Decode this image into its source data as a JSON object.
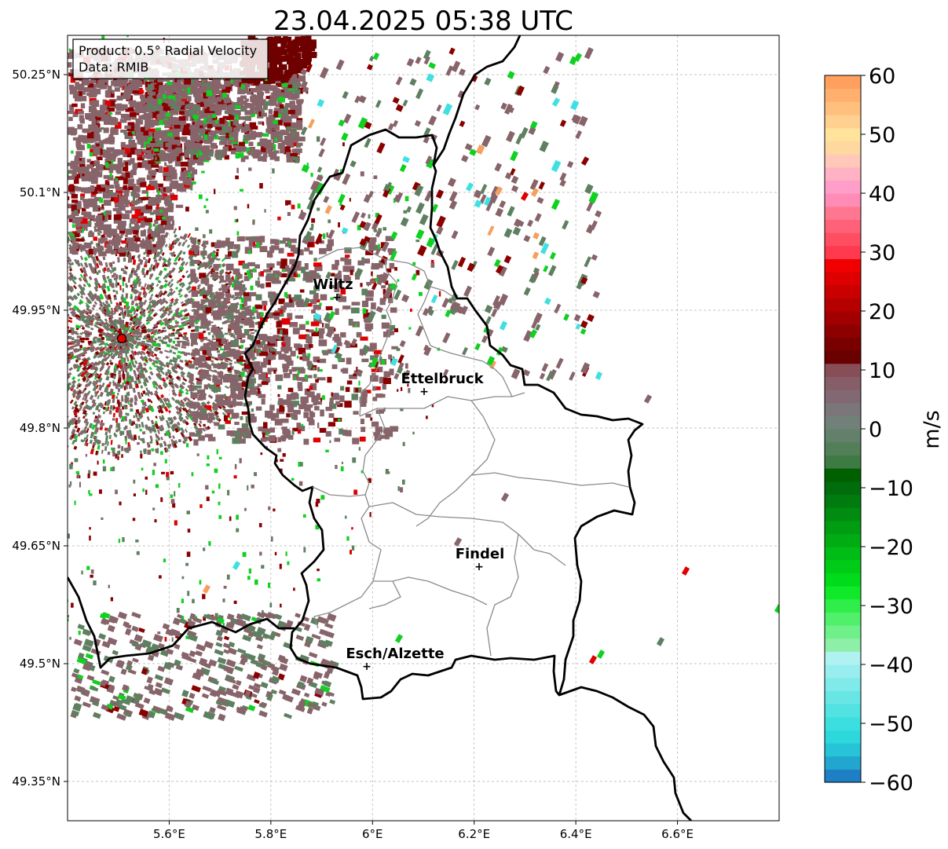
{
  "title": "23.04.2025 05:38 UTC",
  "info": {
    "product": "Product: 0.5° Radial Velocity",
    "data": "Data: RMIB"
  },
  "axes": {
    "lon_range": [
      5.4,
      6.8
    ],
    "lat_range": [
      49.3,
      50.3
    ],
    "x_ticks": [
      "5.6°E",
      "5.8°E",
      "6°E",
      "6.2°E",
      "6.4°E",
      "6.6°E"
    ],
    "x_tick_values": [
      5.6,
      5.8,
      6.0,
      6.2,
      6.4,
      6.6
    ],
    "y_ticks": [
      "50.25°N",
      "50.1°N",
      "49.95°N",
      "49.8°N",
      "49.65°N",
      "49.5°N",
      "49.35°N"
    ],
    "y_tick_values": [
      50.25,
      50.1,
      49.95,
      49.8,
      49.65,
      49.5,
      49.35
    ],
    "grid": true
  },
  "radar_site": {
    "lon": 5.505,
    "lat": 49.915,
    "color": "#e00000"
  },
  "cities": [
    {
      "name": "Wiltz",
      "lon": 5.932,
      "lat": 49.966
    },
    {
      "name": "Ettelbruck",
      "lon": 6.104,
      "lat": 49.847
    },
    {
      "name": "Findel",
      "lon": 6.211,
      "lat": 49.627
    },
    {
      "name": "Esch/Alzette",
      "lon": 5.99,
      "lat": 49.499
    }
  ],
  "colorbar": {
    "label": "m/s",
    "min": -60,
    "max": 60,
    "ticks": [
      "60",
      "50",
      "40",
      "30",
      "20",
      "10",
      "0",
      "−10",
      "−20",
      "−30",
      "−40",
      "−50",
      "−60"
    ],
    "tick_values": [
      60,
      50,
      40,
      30,
      20,
      10,
      0,
      -10,
      -20,
      -30,
      -40,
      -50,
      -60
    ],
    "colors_bottom_to_top": [
      "#1f7fc4",
      "#22a6cf",
      "#26c4d6",
      "#2cd8dc",
      "#3cdfdf",
      "#52e2e2",
      "#68e6e6",
      "#80eaea",
      "#98eeee",
      "#b0f2f2",
      "#8ef0a8",
      "#70f08a",
      "#50f06a",
      "#30ee4a",
      "#10e82a",
      "#00dc1a",
      "#00cc18",
      "#00bc16",
      "#00ac14",
      "#009c12",
      "#008c10",
      "#007c0e",
      "#006c0c",
      "#006000",
      "#3e7a44",
      "#527f58",
      "#63806a",
      "#72807a",
      "#7a7679",
      "#816872",
      "#865e68",
      "#884e58",
      "#6a0000",
      "#7a0000",
      "#8e0000",
      "#a20000",
      "#b60000",
      "#ca0000",
      "#de0000",
      "#f00000",
      "#ff3a4e",
      "#ff4e62",
      "#ff6278",
      "#ff7690",
      "#ff8cb6",
      "#ff9ec8",
      "#ffb2c4",
      "#ffc8b8",
      "#ffd8a0",
      "#ffe29c",
      "#ffd090",
      "#ffc07e",
      "#ffb06e",
      "#ffa05e"
    ]
  },
  "echo_palette": {
    "rain_brown": "#87646a",
    "ground_green": "#5e8060",
    "dark_red": "#8a0000",
    "red": "#e00000",
    "green": "#10d020",
    "cyan": "#40e0e0",
    "orange": "#f4a060",
    "pink": "#ff7090",
    "maroon_core": "#6e0000"
  }
}
